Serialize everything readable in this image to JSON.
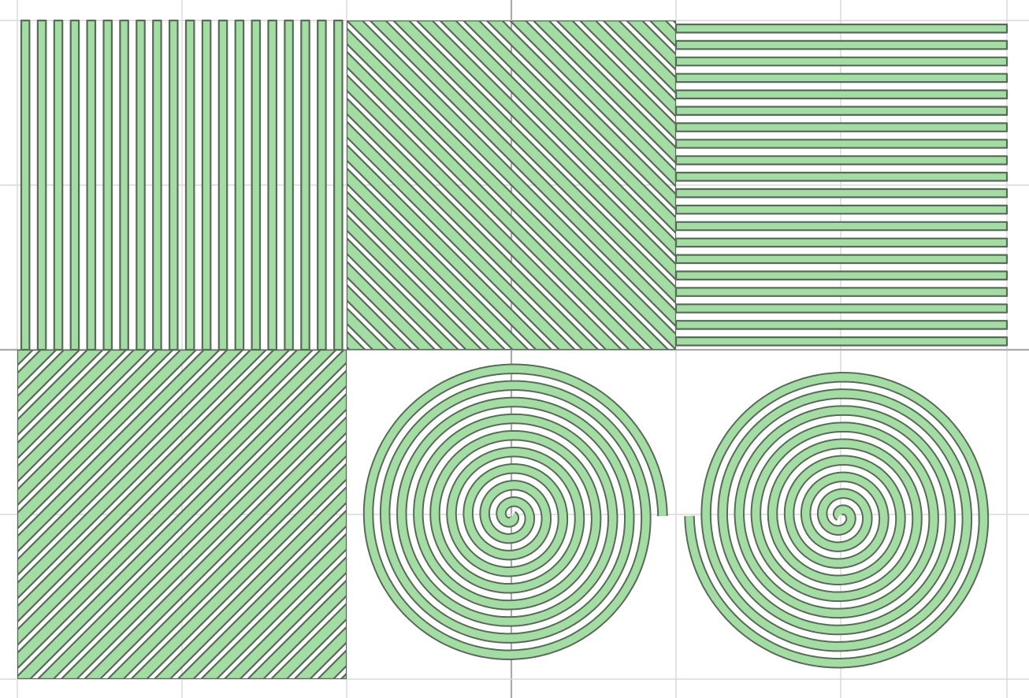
{
  "colors": {
    "fill": "#a3dda3",
    "outline": "#5a6a5a",
    "grid_minor": "#d8d8d8",
    "grid_major": "#aaaaaa",
    "background": "#ffffff"
  },
  "patterns": [
    {
      "name": "vertical-stripes",
      "stripe_count": 20
    },
    {
      "name": "diagonal-stripes-down-right",
      "stripe_count": 20
    },
    {
      "name": "horizontal-stripes",
      "stripe_count": 20
    },
    {
      "name": "diagonal-stripes-up-right",
      "stripe_count": 20
    },
    {
      "name": "spiral-opening-right",
      "turns": 9
    },
    {
      "name": "spiral-opening-left",
      "turns": 9
    }
  ]
}
